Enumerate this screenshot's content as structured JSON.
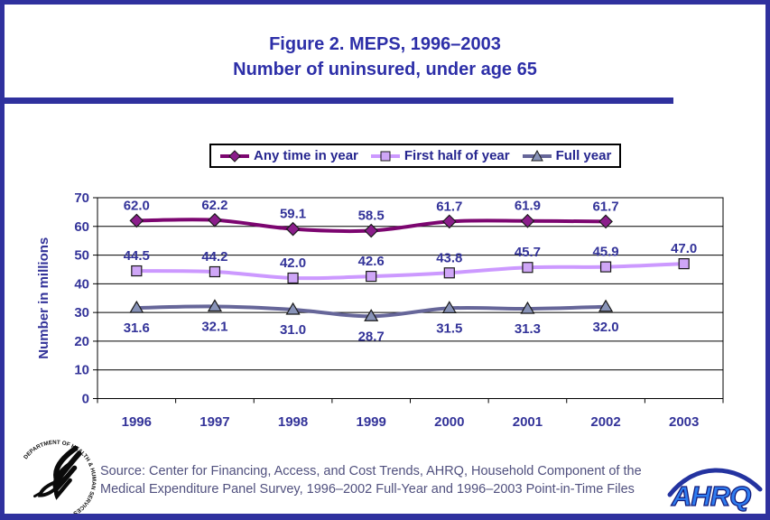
{
  "header": {
    "title_line1": "Figure 2. MEPS, 1996–2003",
    "title_line2": "Number of uninsured, under age 65"
  },
  "chart_data": {
    "type": "line",
    "title": "Figure 2. MEPS, 1996–2003 Number of uninsured, under age 65",
    "xlabel": "",
    "ylabel": "Number in millions",
    "ylim": [
      0,
      70
    ],
    "ytick_step": 10,
    "grid": "horizontal",
    "legend_position": "top",
    "categories": [
      "1996",
      "1997",
      "1998",
      "1999",
      "2000",
      "2001",
      "2002",
      "2003"
    ],
    "series": [
      {
        "name": "Any time in year",
        "marker": "diamond",
        "color": "#7C0670",
        "marker_fill": "#8B1E8B",
        "label_position": "above",
        "values": [
          62.0,
          62.2,
          59.1,
          58.5,
          61.7,
          61.9,
          61.7,
          null
        ]
      },
      {
        "name": "First half of year",
        "marker": "square",
        "color": "#CC99FF",
        "marker_fill": "#CFA6F7",
        "label_position": "above",
        "values": [
          44.5,
          44.2,
          42.0,
          42.6,
          43.8,
          45.7,
          45.9,
          47.0
        ]
      },
      {
        "name": "Full year",
        "marker": "triangle",
        "color": "#666699",
        "marker_fill": "#8893B8",
        "label_position": "below",
        "values": [
          31.6,
          32.1,
          31.0,
          28.7,
          31.5,
          31.3,
          32.0,
          null
        ]
      }
    ]
  },
  "footer": {
    "source_text": "Source: Center for Financing, Access, and Cost Trends, AHRQ, Household Component of the Medical Expenditure Panel Survey, 1996–2002 Full-Year and 1996–2003 Point-in-Time Files"
  },
  "logos": {
    "hhs_ring_text": "DEPARTMENT OF HEALTH & HUMAN SERVICES • USA",
    "ahrq_text": "AHRQ"
  },
  "colors": {
    "frame_blue": "#2F319E",
    "title_text": "#2D2FA8",
    "chart_text": "#333399",
    "source_text": "#50507E",
    "axis_black": "#000000"
  }
}
